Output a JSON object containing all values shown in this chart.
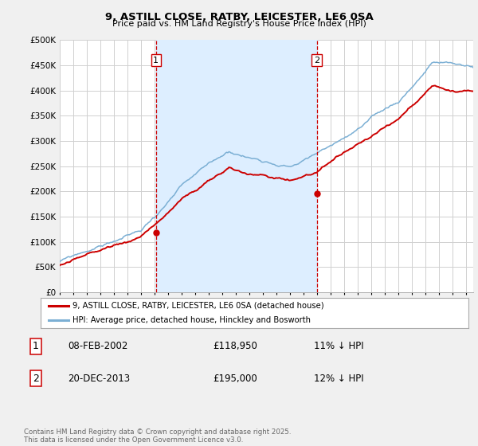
{
  "title": "9, ASTILL CLOSE, RATBY, LEICESTER, LE6 0SA",
  "subtitle": "Price paid vs. HM Land Registry's House Price Index (HPI)",
  "ytick_vals": [
    0,
    50000,
    100000,
    150000,
    200000,
    250000,
    300000,
    350000,
    400000,
    450000,
    500000
  ],
  "ylim": [
    0,
    500000
  ],
  "xlim_start": 1995.0,
  "xlim_end": 2025.5,
  "line_color_red": "#cc0000",
  "line_color_blue": "#7bafd4",
  "bg_color": "#f0f0f0",
  "plot_bg": "#ffffff",
  "grid_color": "#d0d0d0",
  "shade_color": "#ddeeff",
  "purchase1_year": 2002.1,
  "purchase1_price": 118950,
  "purchase2_year": 2013.97,
  "purchase2_price": 195000,
  "legend_label_red": "9, ASTILL CLOSE, RATBY, LEICESTER, LE6 0SA (detached house)",
  "legend_label_blue": "HPI: Average price, detached house, Hinckley and Bosworth",
  "footer_text": "Contains HM Land Registry data © Crown copyright and database right 2025.\nThis data is licensed under the Open Government Licence v3.0."
}
